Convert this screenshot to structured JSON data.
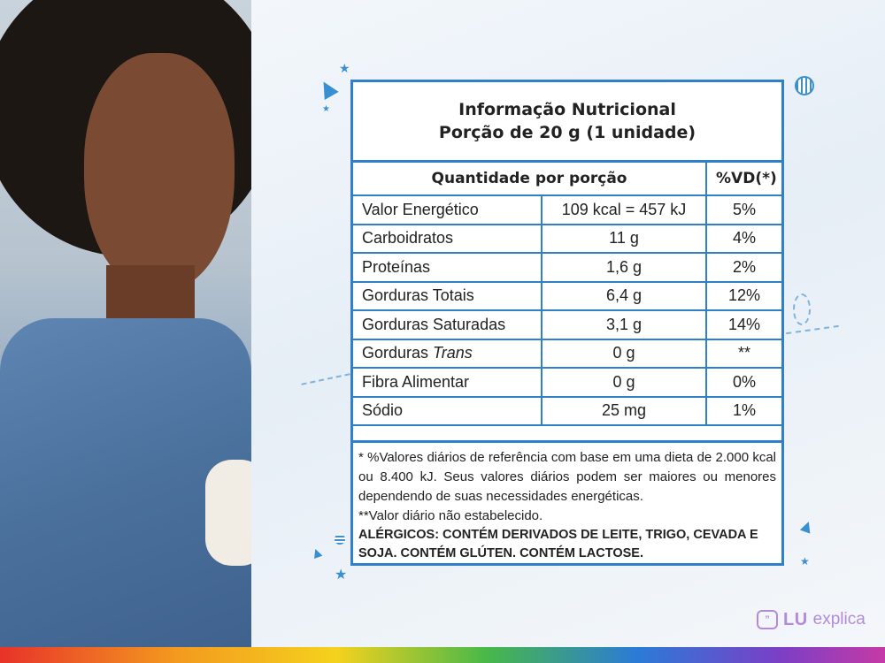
{
  "title": {
    "line1": "Informação Nutricional",
    "line2": "Porção de 20 g (1 unidade)"
  },
  "table": {
    "header_quantity": "Quantidade por porção",
    "header_vd": "%VD(*)",
    "rows": [
      {
        "name": "Valor Energético",
        "name_em": "",
        "amount": "109 kcal = 457 kJ",
        "vd": "5%"
      },
      {
        "name": "Carboidratos",
        "name_em": "",
        "amount": "11 g",
        "vd": "4%"
      },
      {
        "name": "Proteínas",
        "name_em": "",
        "amount": "1,6 g",
        "vd": "2%"
      },
      {
        "name": "Gorduras Totais",
        "name_em": "",
        "amount": "6,4 g",
        "vd": "12%"
      },
      {
        "name": "Gorduras Saturadas",
        "name_em": "",
        "amount": "3,1 g",
        "vd": "14%"
      },
      {
        "name": "Gorduras ",
        "name_em": "Trans",
        "amount": "0 g",
        "vd": "**"
      },
      {
        "name": "Fibra Alimentar",
        "name_em": "",
        "amount": "0 g",
        "vd": "0%"
      },
      {
        "name": "Sódio",
        "name_em": "",
        "amount": "25 mg",
        "vd": "1%"
      }
    ]
  },
  "notes": {
    "reference": "* %Valores diários de referência com base em uma dieta de 2.000 kcal ou 8.400 kJ. Seus valores diários podem ser maiores ou menores dependendo de suas necessidades energéticas.",
    "not_established": "**Valor diário não estabelecido.",
    "allergens": "ALÉRGICOS: CONTÉM DERIVADOS DE LEITE, TRIGO, CEVADA E SOJA. CONTÉM GLÚTEN. CONTÉM LACTOSE."
  },
  "logo": {
    "lu": "LU",
    "explica": "explica"
  },
  "colors": {
    "border": "#2f80c8",
    "logo": "#b48bd9"
  }
}
